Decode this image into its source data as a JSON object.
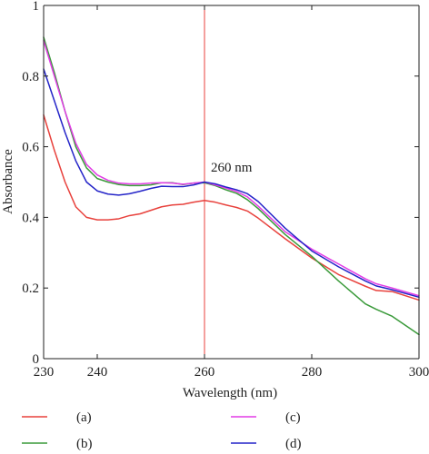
{
  "chart_data": {
    "type": "line",
    "title": "",
    "xlabel": "Wavelength (nm)",
    "ylabel": "Absorbance",
    "xlim": [
      230,
      300
    ],
    "ylim": [
      0,
      1
    ],
    "xticks": [
      230,
      240,
      260,
      280,
      300
    ],
    "yticks": [
      0,
      0.2,
      0.4,
      0.6,
      0.8,
      1
    ],
    "xtick_labels": [
      "230",
      "240",
      "260",
      "280",
      "300"
    ],
    "ytick_labels": [
      "0",
      "0.2",
      "0.4",
      "0.6",
      "0.8",
      "1"
    ],
    "grid": false,
    "legend_position": "bottom",
    "reference_line": {
      "x": 260,
      "label": "260 nm",
      "color": "#e8413c"
    },
    "series": [
      {
        "name": "(a)",
        "color": "#e8413c",
        "points": [
          [
            230,
            0.69
          ],
          [
            232,
            0.59
          ],
          [
            234,
            0.5
          ],
          [
            236,
            0.43
          ],
          [
            238,
            0.4
          ],
          [
            240,
            0.393
          ],
          [
            242,
            0.393
          ],
          [
            244,
            0.396
          ],
          [
            246,
            0.405
          ],
          [
            248,
            0.41
          ],
          [
            250,
            0.42
          ],
          [
            252,
            0.43
          ],
          [
            254,
            0.435
          ],
          [
            256,
            0.437
          ],
          [
            258,
            0.443
          ],
          [
            260,
            0.448
          ],
          [
            262,
            0.443
          ],
          [
            264,
            0.435
          ],
          [
            266,
            0.428
          ],
          [
            268,
            0.418
          ],
          [
            270,
            0.398
          ],
          [
            275,
            0.34
          ],
          [
            280,
            0.285
          ],
          [
            285,
            0.238
          ],
          [
            290,
            0.205
          ],
          [
            292,
            0.193
          ],
          [
            295,
            0.19
          ],
          [
            300,
            0.166
          ]
        ]
      },
      {
        "name": "(b)",
        "color": "#3a9a3a",
        "points": [
          [
            230,
            0.91
          ],
          [
            232,
            0.81
          ],
          [
            234,
            0.7
          ],
          [
            236,
            0.6
          ],
          [
            238,
            0.54
          ],
          [
            240,
            0.51
          ],
          [
            242,
            0.5
          ],
          [
            244,
            0.493
          ],
          [
            246,
            0.49
          ],
          [
            248,
            0.49
          ],
          [
            250,
            0.492
          ],
          [
            252,
            0.498
          ],
          [
            254,
            0.498
          ],
          [
            256,
            0.493
          ],
          [
            258,
            0.497
          ],
          [
            260,
            0.498
          ],
          [
            262,
            0.49
          ],
          [
            264,
            0.478
          ],
          [
            266,
            0.468
          ],
          [
            268,
            0.45
          ],
          [
            270,
            0.425
          ],
          [
            275,
            0.352
          ],
          [
            280,
            0.29
          ],
          [
            285,
            0.22
          ],
          [
            290,
            0.155
          ],
          [
            292,
            0.14
          ],
          [
            295,
            0.12
          ],
          [
            300,
            0.068
          ]
        ]
      },
      {
        "name": "(c)",
        "color": "#e23ce6",
        "points": [
          [
            230,
            0.9
          ],
          [
            232,
            0.8
          ],
          [
            234,
            0.7
          ],
          [
            236,
            0.61
          ],
          [
            238,
            0.55
          ],
          [
            240,
            0.52
          ],
          [
            242,
            0.505
          ],
          [
            244,
            0.497
          ],
          [
            246,
            0.495
          ],
          [
            248,
            0.495
          ],
          [
            250,
            0.497
          ],
          [
            252,
            0.498
          ],
          [
            254,
            0.497
          ],
          [
            256,
            0.494
          ],
          [
            258,
            0.497
          ],
          [
            260,
            0.5
          ],
          [
            262,
            0.492
          ],
          [
            264,
            0.483
          ],
          [
            266,
            0.473
          ],
          [
            268,
            0.458
          ],
          [
            270,
            0.432
          ],
          [
            275,
            0.36
          ],
          [
            280,
            0.31
          ],
          [
            285,
            0.268
          ],
          [
            290,
            0.226
          ],
          [
            292,
            0.212
          ],
          [
            295,
            0.2
          ],
          [
            300,
            0.178
          ]
        ]
      },
      {
        "name": "(d)",
        "color": "#2424c8",
        "points": [
          [
            230,
            0.82
          ],
          [
            232,
            0.73
          ],
          [
            234,
            0.64
          ],
          [
            236,
            0.56
          ],
          [
            238,
            0.5
          ],
          [
            240,
            0.475
          ],
          [
            242,
            0.466
          ],
          [
            244,
            0.463
          ],
          [
            246,
            0.467
          ],
          [
            248,
            0.474
          ],
          [
            250,
            0.482
          ],
          [
            252,
            0.488
          ],
          [
            254,
            0.487
          ],
          [
            256,
            0.487
          ],
          [
            258,
            0.492
          ],
          [
            260,
            0.5
          ],
          [
            262,
            0.495
          ],
          [
            264,
            0.486
          ],
          [
            266,
            0.478
          ],
          [
            268,
            0.467
          ],
          [
            270,
            0.445
          ],
          [
            275,
            0.37
          ],
          [
            280,
            0.305
          ],
          [
            285,
            0.26
          ],
          [
            290,
            0.22
          ],
          [
            292,
            0.206
          ],
          [
            295,
            0.195
          ],
          [
            300,
            0.174
          ]
        ]
      }
    ]
  }
}
